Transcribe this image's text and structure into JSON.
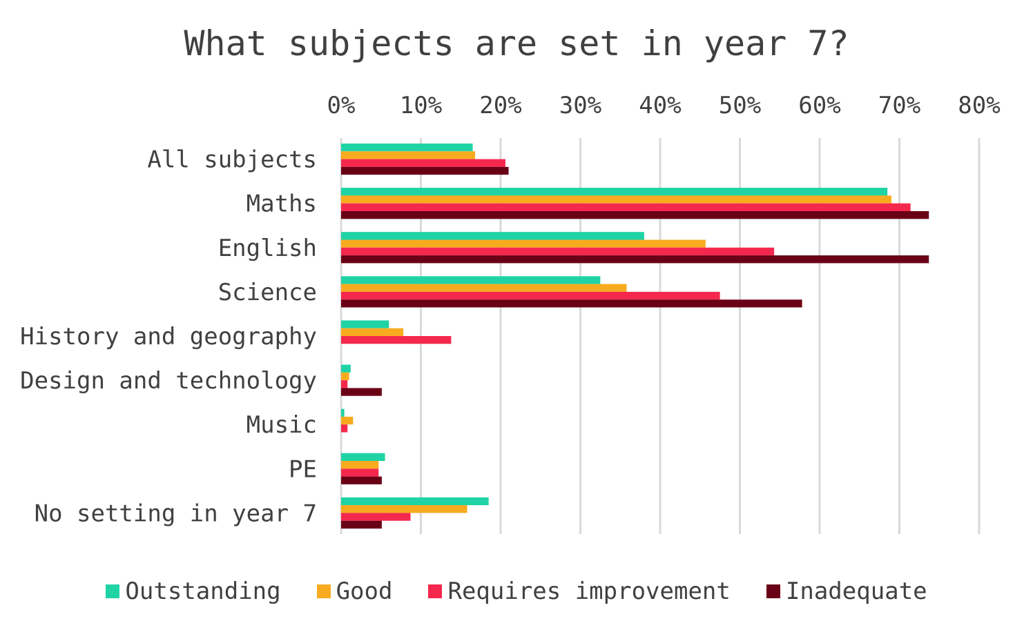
{
  "chart_data": {
    "type": "bar",
    "orientation": "horizontal",
    "title": "What subjects are set in year 7?",
    "xlabel": "",
    "ylabel": "",
    "xlim": [
      0,
      80
    ],
    "x_ticks": [
      "0%",
      "10%",
      "20%",
      "30%",
      "40%",
      "50%",
      "60%",
      "70%",
      "80%"
    ],
    "x_axis_position": "top",
    "grid": true,
    "legend_position": "bottom",
    "categories": [
      "All subjects",
      "Maths",
      "English",
      "Science",
      "History and geography",
      "Design and technology",
      "Music",
      "PE",
      "No setting in year 7"
    ],
    "series": [
      {
        "name": "Outstanding",
        "color": "#1fd3a4",
        "values": [
          16.5,
          68.5,
          38.0,
          32.5,
          6.0,
          1.2,
          0.4,
          5.5,
          18.5
        ]
      },
      {
        "name": "Good",
        "color": "#f8ab1f",
        "values": [
          16.8,
          69.0,
          45.7,
          35.8,
          7.8,
          1.0,
          1.5,
          4.7,
          15.8
        ]
      },
      {
        "name": "Requires improvement",
        "color": "#f4284d",
        "values": [
          20.6,
          71.4,
          54.3,
          47.5,
          13.8,
          0.8,
          0.8,
          4.7,
          8.7
        ]
      },
      {
        "name": "Inadequate",
        "color": "#6a0016",
        "values": [
          21.0,
          73.7,
          73.7,
          57.8,
          0,
          5.1,
          0,
          5.1,
          5.1
        ]
      }
    ]
  }
}
